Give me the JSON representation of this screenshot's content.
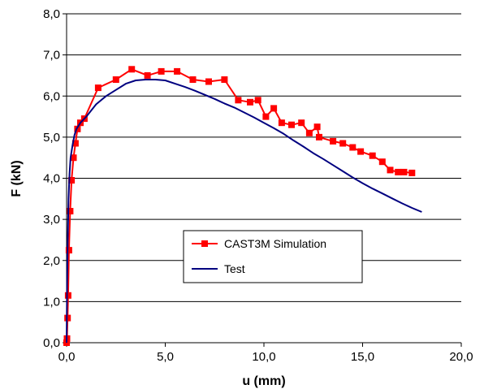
{
  "chart_data": {
    "type": "line",
    "title": "",
    "xlabel": "u (mm)",
    "ylabel": "F (kN)",
    "xlim": [
      0,
      20
    ],
    "ylim": [
      0,
      8
    ],
    "x_ticks": [
      0,
      5,
      10,
      15,
      20
    ],
    "y_ticks": [
      0,
      1,
      2,
      3,
      4,
      5,
      6,
      7,
      8
    ],
    "x_tick_labels": [
      "0,0",
      "5,0",
      "10,0",
      "15,0",
      "20,0"
    ],
    "y_tick_labels": [
      "0,0",
      "1,0",
      "2,0",
      "3,0",
      "4,0",
      "5,0",
      "6,0",
      "7,0",
      "8,0"
    ],
    "grid": "horizontal",
    "legend": "center",
    "series": [
      {
        "name": "CAST3M Simulation",
        "color": "#ff0000",
        "marker": "square",
        "x": [
          0.0,
          0.02,
          0.05,
          0.08,
          0.12,
          0.18,
          0.25,
          0.35,
          0.45,
          0.55,
          0.7,
          0.9,
          1.6,
          2.5,
          3.3,
          4.1,
          4.8,
          5.6,
          6.4,
          7.2,
          8.0,
          8.7,
          9.3,
          9.7,
          10.1,
          10.5,
          10.9,
          11.4,
          11.9,
          12.3,
          12.7,
          12.8,
          13.5,
          14.0,
          14.5,
          14.9,
          15.5,
          16.0,
          16.4,
          16.8,
          17.1,
          17.5
        ],
        "y": [
          0.0,
          0.1,
          0.6,
          1.15,
          2.25,
          3.2,
          3.95,
          4.5,
          4.85,
          5.2,
          5.35,
          5.45,
          6.2,
          6.4,
          6.65,
          6.5,
          6.6,
          6.6,
          6.4,
          6.35,
          6.4,
          5.9,
          5.85,
          5.9,
          5.5,
          5.7,
          5.35,
          5.3,
          5.35,
          5.1,
          5.25,
          5.0,
          4.9,
          4.85,
          4.75,
          4.65,
          4.55,
          4.4,
          4.2,
          4.15,
          4.15,
          4.13
        ]
      },
      {
        "name": "Test",
        "color": "#000080",
        "marker": "none",
        "x": [
          0.0,
          0.02,
          0.05,
          0.1,
          0.15,
          0.2,
          0.3,
          0.4,
          0.5,
          0.7,
          1.0,
          1.5,
          2.0,
          2.5,
          3.0,
          3.5,
          4.0,
          4.5,
          5.0,
          5.5,
          6.0,
          6.5,
          7.0,
          7.5,
          8.0,
          8.5,
          9.0,
          9.5,
          10.0,
          10.5,
          11.0,
          11.5,
          12.0,
          12.5,
          13.0,
          13.5,
          14.0,
          14.5,
          15.0,
          15.5,
          16.0,
          16.5,
          17.0,
          17.5,
          18.0
        ],
        "y": [
          0.0,
          1.2,
          2.3,
          3.5,
          4.1,
          4.5,
          4.8,
          5.05,
          5.2,
          5.35,
          5.5,
          5.8,
          6.0,
          6.15,
          6.3,
          6.38,
          6.4,
          6.4,
          6.38,
          6.3,
          6.22,
          6.13,
          6.03,
          5.93,
          5.82,
          5.72,
          5.6,
          5.48,
          5.35,
          5.22,
          5.08,
          4.92,
          4.77,
          4.61,
          4.47,
          4.32,
          4.17,
          4.02,
          3.88,
          3.75,
          3.63,
          3.51,
          3.39,
          3.28,
          3.18
        ]
      }
    ]
  }
}
